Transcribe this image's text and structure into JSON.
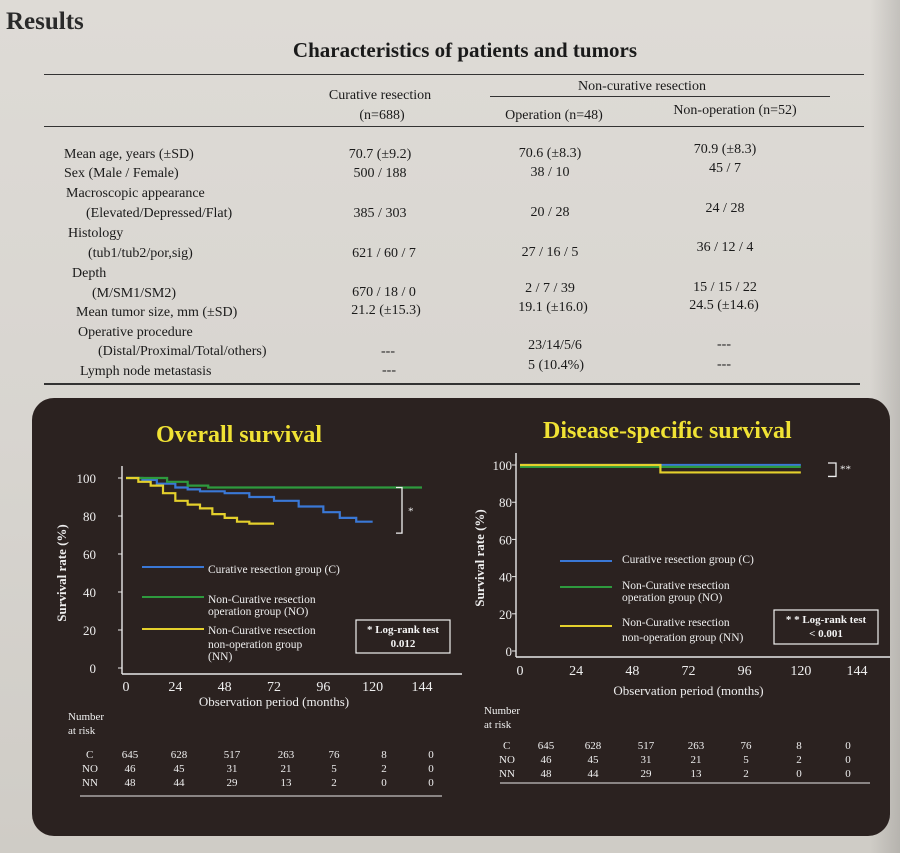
{
  "section_title": "Results",
  "table": {
    "title": "Characteristics of patients and tumors",
    "headers": {
      "curative": "Curative resection",
      "curative_n": "(n=688)",
      "noncurative": "Non-curative resection",
      "operation": "Operation (n=48)",
      "nonoperation": "Non-operation (n=52)"
    },
    "rows": [
      {
        "label": "Mean age, years (±SD)",
        "curative": "70.7 (±9.2)",
        "operation": "70.6 (±8.3)",
        "nonoperation": "70.9 (±8.3)"
      },
      {
        "label": "Sex (Male / Female)",
        "curative": "500 / 188",
        "operation": "38 / 10",
        "nonoperation": "45 / 7"
      },
      {
        "label": "Macroscopic appearance",
        "curative": "",
        "operation": "",
        "nonoperation": ""
      },
      {
        "label": "(Elevated/Depressed/Flat)",
        "curative": "385 / 303",
        "operation": "20 / 28",
        "nonoperation": "24 / 28"
      },
      {
        "label": "Histology",
        "curative": "",
        "operation": "",
        "nonoperation": ""
      },
      {
        "label": "(tub1/tub2/por,sig)",
        "curative": "621 / 60 / 7",
        "operation": "27 / 16 / 5",
        "nonoperation": "36 / 12 / 4"
      },
      {
        "label": "Depth",
        "curative": "",
        "operation": "",
        "nonoperation": ""
      },
      {
        "label": "(M/SM1/SM2)",
        "curative": "670 / 18 / 0",
        "operation": "2 / 7 / 39",
        "nonoperation": "15 / 15 / 22"
      },
      {
        "label": "Mean tumor size, mm (±SD)",
        "curative": "21.2 (±15.3)",
        "operation": "19.1 (±16.0)",
        "nonoperation": "24.5 (±14.6)"
      },
      {
        "label": "Operative procedure",
        "curative": "",
        "operation": "",
        "nonoperation": ""
      },
      {
        "label": "(Distal/Proximal/Total/others)",
        "curative": "---",
        "operation": "23/14/5/6",
        "nonoperation": "---"
      },
      {
        "label": "Lymph node metastasis",
        "curative": "---",
        "operation": "5 (10.4%)",
        "nonoperation": "---"
      }
    ]
  },
  "colors": {
    "curative": "#3a78d6",
    "operation": "#2e9a3e",
    "nonoperation": "#e4d02c",
    "panel_bg": "#2b2220",
    "title": "#f0e234"
  },
  "chart_data": [
    {
      "type": "line",
      "title": "Overall survival",
      "xlabel": "Observation period (months)",
      "ylabel": "Survival rate (%)",
      "xlim": [
        0,
        144
      ],
      "ylim": [
        0,
        100
      ],
      "xticks": [
        "0",
        "24",
        "48",
        "72",
        "96",
        "120",
        "144"
      ],
      "yticks": [
        "100",
        "80",
        "60",
        "40",
        "20",
        "0"
      ],
      "series": [
        {
          "name": "Curative resection group (C)",
          "color": "#3a78d6",
          "x": [
            0,
            8,
            15,
            24,
            30,
            36,
            48,
            60,
            72,
            84,
            96,
            104,
            112,
            120
          ],
          "y": [
            100,
            99,
            97,
            95,
            94,
            93,
            92,
            90,
            88,
            85,
            82,
            79,
            77,
            77
          ]
        },
        {
          "name": "Non-Curative resection operation group (NO)",
          "color": "#2e9a3e",
          "x": [
            0,
            10,
            20,
            30,
            40,
            144
          ],
          "y": [
            100,
            100,
            98,
            96,
            95,
            95
          ]
        },
        {
          "name": "Non-Curative resection non-operation group (NN)",
          "color": "#e4d02c",
          "x": [
            0,
            6,
            12,
            18,
            24,
            30,
            36,
            42,
            48,
            54,
            60,
            72
          ],
          "y": [
            100,
            98,
            96,
            92,
            88,
            86,
            84,
            81,
            79,
            77,
            76,
            76
          ]
        }
      ],
      "annotation_symbol": "*",
      "test": {
        "label": "* Log-rank test",
        "value": "0.012"
      },
      "risk_table": {
        "title": "Number at risk",
        "groups": [
          "C",
          "NO",
          "NN"
        ],
        "times": [
          "0",
          "24",
          "48",
          "72",
          "96",
          "120",
          "144"
        ],
        "values": [
          [
            "645",
            "628",
            "517",
            "263",
            "76",
            "8",
            "0"
          ],
          [
            "46",
            "45",
            "31",
            "21",
            "5",
            "2",
            "0"
          ],
          [
            "48",
            "44",
            "29",
            "13",
            "2",
            "0",
            "0"
          ]
        ]
      }
    },
    {
      "type": "line",
      "title": "Disease-specific survival",
      "xlabel": "Observation period (months)",
      "ylabel": "Survival rate (%)",
      "xlim": [
        0,
        144
      ],
      "ylim": [
        0,
        100
      ],
      "xticks": [
        "0",
        "24",
        "48",
        "72",
        "96",
        "120",
        "144"
      ],
      "yticks": [
        "100",
        "80",
        "60",
        "40",
        "20",
        "0"
      ],
      "series": [
        {
          "name": "Curative resection group (C)",
          "color": "#3a78d6",
          "x": [
            0,
            60,
            120
          ],
          "y": [
            100,
            100,
            100
          ]
        },
        {
          "name": "Non-Curative resection operation group (NO)",
          "color": "#2e9a3e",
          "x": [
            0,
            120
          ],
          "y": [
            99,
            99
          ]
        },
        {
          "name": "Non-Curative resection non-operation group (NN)",
          "color": "#e4d02c",
          "x": [
            0,
            42,
            60,
            120
          ],
          "y": [
            100,
            100,
            96,
            96
          ]
        }
      ],
      "annotation_symbol": "**",
      "test": {
        "label": "* * Log-rank test",
        "value": "< 0.001"
      },
      "risk_table": {
        "title": "Number at risk",
        "groups": [
          "C",
          "NO",
          "NN"
        ],
        "times": [
          "0",
          "24",
          "48",
          "72",
          "96",
          "120",
          "144"
        ],
        "values": [
          [
            "645",
            "628",
            "517",
            "263",
            "76",
            "8",
            "0"
          ],
          [
            "46",
            "45",
            "31",
            "21",
            "5",
            "2",
            "0"
          ],
          [
            "48",
            "44",
            "29",
            "13",
            "2",
            "0",
            "0"
          ]
        ]
      }
    }
  ]
}
